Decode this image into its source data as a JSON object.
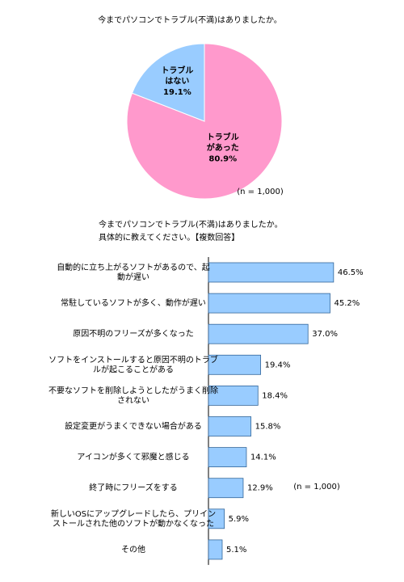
{
  "chart_data": [
    {
      "type": "pie",
      "title": "今までパソコンでトラブル(不満)はありましたか。",
      "labels": [
        "トラブル\nがあった",
        "トラブル\nはない"
      ],
      "values": [
        80.9,
        19.1
      ],
      "value_labels": [
        "80.9%",
        "19.1%"
      ],
      "colors": [
        "#ff99cc",
        "#99ccff"
      ],
      "note": "(n = 1,000)"
    },
    {
      "type": "bar",
      "orientation": "horizontal",
      "title": "今までパソコンでトラブル(不満)はありましたか。\n具体的に教えてください。【複数回答】",
      "categories": [
        "自動的に立ち上がるソフトがあるので、起\n動が遅い",
        "常駐しているソフトが多く、動作が遅い",
        "原因不明のフリーズが多くなった",
        "ソフトをインストールすると原因不明のトラブ\nルが起こることがある",
        "不要なソフトを削除しようとしたがうまく削除\nされない",
        "設定変更がうまくできない場合がある",
        "アイコンが多くて邪魔と感じる",
        "終了時にフリーズをする",
        "新しいOSにアップグレードしたら、プリイン\nストールされた他のソフトが動かなくなった",
        "その他"
      ],
      "values": [
        46.5,
        45.2,
        37.0,
        19.4,
        18.4,
        15.8,
        14.1,
        12.9,
        5.9,
        5.1
      ],
      "value_labels": [
        "46.5%",
        "45.2%",
        "37.0%",
        "19.4%",
        "18.4%",
        "15.8%",
        "14.1%",
        "12.9%",
        "5.9%",
        "5.1%"
      ],
      "color": "#99ccff",
      "note": "(n = 1,000)"
    }
  ]
}
